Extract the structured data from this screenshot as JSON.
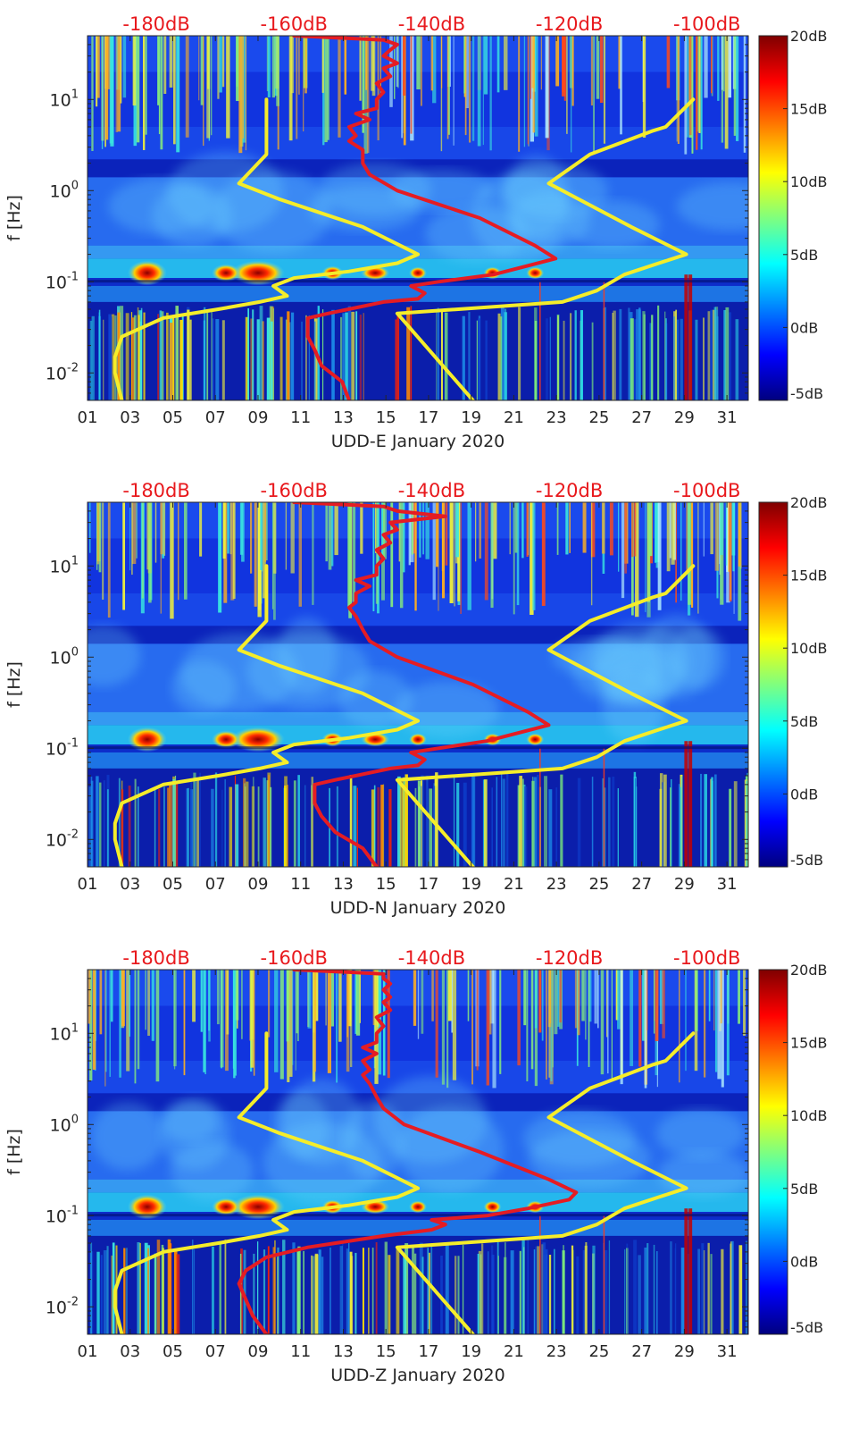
{
  "colors": {
    "top_axis_text": "#e8191d",
    "red_curve": "#e51c23",
    "yellow_curve": "#f5ed2a",
    "axis_text": "#262626",
    "colormap": [
      "#00007f",
      "#0000ff",
      "#007fff",
      "#00ffff",
      "#7fff7f",
      "#ffff00",
      "#ff7f00",
      "#ff0000",
      "#7f0000"
    ]
  },
  "chart_data": [
    {
      "type": "heatmap",
      "component": "E",
      "xlabel": "UDD-E January 2020",
      "ylabel": "f [Hz]",
      "x_tick_labels": [
        "01",
        "03",
        "05",
        "07",
        "09",
        "11",
        "13",
        "15",
        "17",
        "19",
        "21",
        "23",
        "25",
        "27",
        "29",
        "31"
      ],
      "x_range_days": [
        1,
        32
      ],
      "y_scale": "log",
      "y_range_hz": [
        0.005,
        50
      ],
      "y_tick_labels": [
        "10^-2",
        "10^-1",
        "10^0",
        "10^1"
      ],
      "y_tick_values": [
        0.01,
        0.1,
        1,
        10
      ],
      "top_axis_labels": [
        "-180dB",
        "-160dB",
        "-140dB",
        "-120dB",
        "-100dB"
      ],
      "top_axis_values_db": [
        -180,
        -160,
        -140,
        -120,
        -100
      ],
      "top_axis_range_db": [
        -190,
        -94
      ],
      "colorbar": {
        "labels": [
          "20dB",
          "15dB",
          "10dB",
          "5dB",
          "0dB",
          "-5dB"
        ],
        "values": [
          20,
          15,
          10,
          5,
          0,
          -5
        ],
        "range_db": [
          -5,
          20
        ]
      },
      "yellow_curves": [
        {
          "points_db_hz": [
            [
              -185,
              0.005
            ],
            [
              -186,
              0.01
            ],
            [
              -186,
              0.015
            ],
            [
              -185,
              0.025
            ],
            [
              -179,
              0.04
            ],
            [
              -171,
              0.05
            ],
            [
              -165,
              0.06
            ],
            [
              -161,
              0.07
            ],
            [
              -163,
              0.09
            ],
            [
              -160,
              0.11
            ],
            [
              -152,
              0.13
            ],
            [
              -145,
              0.16
            ],
            [
              -142,
              0.2
            ],
            [
              -150,
              0.4
            ],
            [
              -162,
              0.8
            ],
            [
              -168,
              1.2
            ],
            [
              -164,
              2.5
            ],
            [
              -164,
              10
            ]
          ]
        },
        {
          "points_db_hz": [
            [
              -134,
              0.005
            ],
            [
              -145,
              0.045
            ],
            [
              -121,
              0.06
            ],
            [
              -116,
              0.08
            ],
            [
              -112,
              0.12
            ],
            [
              -107,
              0.16
            ],
            [
              -103,
              0.2
            ],
            [
              -111,
              0.4
            ],
            [
              -123,
              1.2
            ],
            [
              -117,
              2.5
            ],
            [
              -108,
              4.5
            ],
            [
              -106,
              5
            ],
            [
              -102,
              10
            ]
          ]
        }
      ],
      "red_curve": {
        "points_db_hz": [
          [
            -152,
            0.005
          ],
          [
            -153,
            0.008
          ],
          [
            -156,
            0.012
          ],
          [
            -157,
            0.018
          ],
          [
            -158,
            0.025
          ],
          [
            -158,
            0.04
          ],
          [
            -155,
            0.045
          ],
          [
            -147,
            0.06
          ],
          [
            -142,
            0.065
          ],
          [
            -141,
            0.075
          ],
          [
            -143,
            0.09
          ],
          [
            -139,
            0.1
          ],
          [
            -131,
            0.12
          ],
          [
            -126,
            0.15
          ],
          [
            -122,
            0.18
          ],
          [
            -125,
            0.25
          ],
          [
            -133,
            0.5
          ],
          [
            -145,
            1
          ],
          [
            -149,
            1.5
          ],
          [
            -150,
            2
          ],
          [
            -150,
            2.8
          ],
          [
            -152,
            3.5
          ],
          [
            -151,
            4
          ],
          [
            -152,
            5
          ],
          [
            -149,
            6
          ],
          [
            -151,
            7
          ],
          [
            -148,
            8
          ],
          [
            -148,
            10
          ],
          [
            -147,
            12
          ],
          [
            -148,
            15
          ],
          [
            -146,
            18
          ],
          [
            -147,
            22
          ],
          [
            -145,
            25
          ],
          [
            -147,
            30
          ],
          [
            -146,
            35
          ],
          [
            -145,
            40
          ],
          [
            -147,
            45
          ],
          [
            -160,
            50
          ]
        ]
      }
    },
    {
      "type": "heatmap",
      "component": "N",
      "xlabel": "UDD-N January 2020",
      "ylabel": "f [Hz]",
      "x_tick_labels": [
        "01",
        "03",
        "05",
        "07",
        "09",
        "11",
        "13",
        "15",
        "17",
        "19",
        "21",
        "23",
        "25",
        "27",
        "29",
        "31"
      ],
      "x_range_days": [
        1,
        32
      ],
      "y_scale": "log",
      "y_range_hz": [
        0.005,
        50
      ],
      "y_tick_labels": [
        "10^-2",
        "10^-1",
        "10^0",
        "10^1"
      ],
      "y_tick_values": [
        0.01,
        0.1,
        1,
        10
      ],
      "top_axis_labels": [
        "-180dB",
        "-160dB",
        "-140dB",
        "-120dB",
        "-100dB"
      ],
      "top_axis_values_db": [
        -180,
        -160,
        -140,
        -120,
        -100
      ],
      "top_axis_range_db": [
        -190,
        -94
      ],
      "colorbar": {
        "labels": [
          "20dB",
          "15dB",
          "10dB",
          "5dB",
          "0dB",
          "-5dB"
        ],
        "values": [
          20,
          15,
          10,
          5,
          0,
          -5
        ],
        "range_db": [
          -5,
          20
        ]
      },
      "yellow_curves": [
        {
          "points_db_hz": [
            [
              -185,
              0.005
            ],
            [
              -186,
              0.01
            ],
            [
              -186,
              0.015
            ],
            [
              -185,
              0.025
            ],
            [
              -179,
              0.04
            ],
            [
              -171,
              0.05
            ],
            [
              -165,
              0.06
            ],
            [
              -161,
              0.07
            ],
            [
              -163,
              0.09
            ],
            [
              -160,
              0.11
            ],
            [
              -152,
              0.13
            ],
            [
              -145,
              0.16
            ],
            [
              -142,
              0.2
            ],
            [
              -150,
              0.4
            ],
            [
              -162,
              0.8
            ],
            [
              -168,
              1.2
            ],
            [
              -164,
              2.5
            ],
            [
              -164,
              10
            ]
          ]
        },
        {
          "points_db_hz": [
            [
              -134,
              0.005
            ],
            [
              -145,
              0.045
            ],
            [
              -121,
              0.06
            ],
            [
              -116,
              0.08
            ],
            [
              -112,
              0.12
            ],
            [
              -107,
              0.16
            ],
            [
              -103,
              0.2
            ],
            [
              -111,
              0.4
            ],
            [
              -123,
              1.2
            ],
            [
              -117,
              2.5
            ],
            [
              -108,
              4.5
            ],
            [
              -106,
              5
            ],
            [
              -102,
              10
            ]
          ]
        }
      ],
      "red_curve": {
        "points_db_hz": [
          [
            -148,
            0.005
          ],
          [
            -150,
            0.008
          ],
          [
            -154,
            0.012
          ],
          [
            -156,
            0.018
          ],
          [
            -157,
            0.025
          ],
          [
            -157,
            0.04
          ],
          [
            -154,
            0.045
          ],
          [
            -146,
            0.06
          ],
          [
            -142,
            0.065
          ],
          [
            -141,
            0.075
          ],
          [
            -143,
            0.09
          ],
          [
            -139,
            0.1
          ],
          [
            -132,
            0.12
          ],
          [
            -127,
            0.15
          ],
          [
            -123,
            0.18
          ],
          [
            -126,
            0.25
          ],
          [
            -134,
            0.5
          ],
          [
            -145,
            1
          ],
          [
            -149,
            1.5
          ],
          [
            -150,
            2
          ],
          [
            -151,
            2.8
          ],
          [
            -152,
            3.5
          ],
          [
            -151,
            4
          ],
          [
            -151,
            5
          ],
          [
            -149,
            6
          ],
          [
            -151,
            7
          ],
          [
            -148,
            8
          ],
          [
            -148,
            10
          ],
          [
            -147,
            12
          ],
          [
            -148,
            15
          ],
          [
            -146,
            18
          ],
          [
            -147,
            22
          ],
          [
            -145,
            25
          ],
          [
            -146,
            30
          ],
          [
            -138,
            35
          ],
          [
            -145,
            40
          ],
          [
            -147,
            45
          ],
          [
            -160,
            50
          ]
        ]
      }
    },
    {
      "type": "heatmap",
      "component": "Z",
      "xlabel": "UDD-Z January 2020",
      "ylabel": "f [Hz]",
      "x_tick_labels": [
        "01",
        "03",
        "05",
        "07",
        "09",
        "11",
        "13",
        "15",
        "17",
        "19",
        "21",
        "23",
        "25",
        "27",
        "29",
        "31"
      ],
      "x_range_days": [
        1,
        32
      ],
      "y_scale": "log",
      "y_range_hz": [
        0.005,
        50
      ],
      "y_tick_labels": [
        "10^-2",
        "10^-1",
        "10^0",
        "10^1"
      ],
      "y_tick_values": [
        0.01,
        0.1,
        1,
        10
      ],
      "top_axis_labels": [
        "-180dB",
        "-160dB",
        "-140dB",
        "-120dB",
        "-100dB"
      ],
      "top_axis_values_db": [
        -180,
        -160,
        -140,
        -120,
        -100
      ],
      "top_axis_range_db": [
        -190,
        -94
      ],
      "colorbar": {
        "labels": [
          "20dB",
          "15dB",
          "10dB",
          "5dB",
          "0dB",
          "-5dB"
        ],
        "values": [
          20,
          15,
          10,
          5,
          0,
          -5
        ],
        "range_db": [
          -5,
          20
        ]
      },
      "yellow_curves": [
        {
          "points_db_hz": [
            [
              -185,
              0.005
            ],
            [
              -186,
              0.01
            ],
            [
              -186,
              0.015
            ],
            [
              -185,
              0.025
            ],
            [
              -179,
              0.04
            ],
            [
              -171,
              0.05
            ],
            [
              -165,
              0.06
            ],
            [
              -161,
              0.07
            ],
            [
              -163,
              0.09
            ],
            [
              -160,
              0.11
            ],
            [
              -152,
              0.13
            ],
            [
              -145,
              0.16
            ],
            [
              -142,
              0.2
            ],
            [
              -150,
              0.4
            ],
            [
              -162,
              0.8
            ],
            [
              -168,
              1.2
            ],
            [
              -164,
              2.5
            ],
            [
              -164,
              10
            ]
          ]
        },
        {
          "points_db_hz": [
            [
              -134,
              0.005
            ],
            [
              -145,
              0.045
            ],
            [
              -121,
              0.06
            ],
            [
              -116,
              0.08
            ],
            [
              -112,
              0.12
            ],
            [
              -107,
              0.16
            ],
            [
              -103,
              0.2
            ],
            [
              -111,
              0.4
            ],
            [
              -123,
              1.2
            ],
            [
              -117,
              2.5
            ],
            [
              -108,
              4.5
            ],
            [
              -106,
              5
            ],
            [
              -102,
              10
            ]
          ]
        }
      ],
      "red_curve": {
        "points_db_hz": [
          [
            -164,
            0.005
          ],
          [
            -166,
            0.008
          ],
          [
            -167,
            0.012
          ],
          [
            -168,
            0.018
          ],
          [
            -167,
            0.025
          ],
          [
            -164,
            0.035
          ],
          [
            -158,
            0.045
          ],
          [
            -147,
            0.06
          ],
          [
            -140,
            0.07
          ],
          [
            -138,
            0.08
          ],
          [
            -140,
            0.09
          ],
          [
            -132,
            0.1
          ],
          [
            -126,
            0.12
          ],
          [
            -120,
            0.15
          ],
          [
            -119,
            0.18
          ],
          [
            -123,
            0.25
          ],
          [
            -133,
            0.5
          ],
          [
            -144,
            1
          ],
          [
            -147,
            1.5
          ],
          [
            -148,
            2
          ],
          [
            -149,
            2.8
          ],
          [
            -150,
            3.5
          ],
          [
            -149,
            4
          ],
          [
            -150,
            5
          ],
          [
            -148,
            6
          ],
          [
            -150,
            7
          ],
          [
            -148,
            8
          ],
          [
            -148,
            10
          ],
          [
            -147,
            12
          ],
          [
            -148,
            15
          ],
          [
            -146,
            18
          ],
          [
            -147,
            22
          ],
          [
            -146,
            25
          ],
          [
            -147,
            30
          ],
          [
            -146,
            35
          ],
          [
            -147,
            40
          ],
          [
            -147,
            45
          ],
          [
            -160,
            50
          ]
        ]
      }
    }
  ]
}
